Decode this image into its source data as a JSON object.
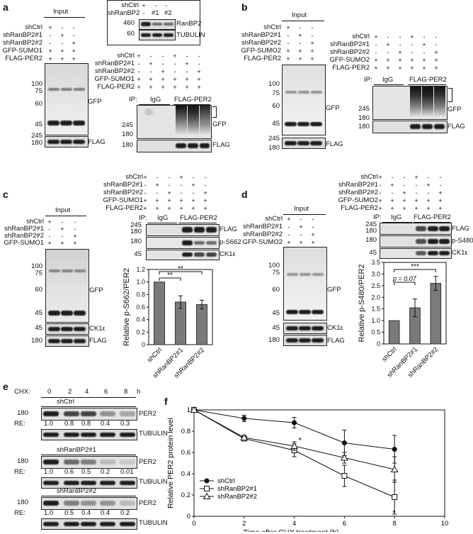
{
  "panels": {
    "a": "a",
    "b": "b",
    "c": "c",
    "d": "d",
    "e": "e",
    "f": "f"
  },
  "common": {
    "input": "Input",
    "ip": "IP:",
    "igg": "IgG",
    "flag_per2": "FLAG-PER2",
    "gfp": "GFP",
    "flag": "FLAG",
    "tubulin": "TUBULIN",
    "ranbp2": "RanBP2",
    "ck1e": "CK1ε",
    "ps662": "p-S662",
    "ps480": "p-S480",
    "per2": "PER2"
  },
  "row_labels": {
    "shctrl": "shCtrl",
    "sh1": "shRanBP2#1",
    "sh2": "shRanBP2#2",
    "gfp_sumo1": "GFP-SUMO1",
    "gfp_sumo2": "GFP-SUMO2",
    "flag_per2": "FLAG-PER2"
  },
  "mw": {
    "m460": "460",
    "m245": "245",
    "m180": "180",
    "m100": "100",
    "m75": "75",
    "m60": "60",
    "m45": "45"
  },
  "inset": {
    "label": "shRanBP2",
    "shctrl": "shCtrl",
    "l1": "#1",
    "l2": "#2",
    "plus": "+",
    "minus": "-"
  },
  "signs": {
    "plus": "+",
    "minus": "-"
  },
  "chart_c": {
    "ylabel": "Relative p-S662/PER2",
    "categories": [
      "shCtrl",
      "shRanBP2#1",
      "shRanBP2#2"
    ],
    "values": [
      1.0,
      0.68,
      0.64
    ],
    "errors": [
      0.0,
      0.1,
      0.07
    ],
    "ticks": [
      "0",
      "0.2",
      "0.4",
      "0.6",
      "0.8",
      "1.0",
      "1.2"
    ],
    "sig": [
      "**",
      "**"
    ]
  },
  "chart_d": {
    "ylabel": "Relative p-S480/PER2",
    "categories": [
      "shCtrl",
      "shRanBP2#1",
      "shRanBP2#2"
    ],
    "values": [
      1.0,
      1.55,
      2.6
    ],
    "errors": [
      0.0,
      0.38,
      0.3
    ],
    "ticks": [
      "0",
      "0.5",
      "1.0",
      "1.5",
      "2.0",
      "2.5",
      "3.0",
      "3.5"
    ],
    "sig_p": "p = 0.07",
    "sig": "***"
  },
  "panel_e": {
    "chx": "CHX:",
    "hours": [
      "0",
      "2",
      "4",
      "6",
      "8"
    ],
    "h": "h",
    "re": "RE:",
    "groups": [
      {
        "name": "shCtrl",
        "re": [
          "1.0",
          "0.8",
          "0.8",
          "0.4",
          "0.3"
        ]
      },
      {
        "name": "shRanBP2#1",
        "re": [
          "1.0",
          "0.6",
          "0.5",
          "0.2",
          "0.01"
        ]
      },
      {
        "name": "shRanBP2#2",
        "re": [
          "1.0",
          "0.5",
          "0.4",
          "0.4",
          "0.2"
        ]
      }
    ]
  },
  "chart_data": {
    "type": "line",
    "x": [
      0,
      2,
      4,
      6,
      8
    ],
    "xlabel": "Time after CHX treatment (h)",
    "ylabel": "Relative PER2 protein level",
    "xlim": [
      0,
      10
    ],
    "ylim": [
      0,
      1
    ],
    "xticks": [
      "0",
      "2",
      "4",
      "6",
      "8",
      "10"
    ],
    "yticks": [
      "0",
      "0.2",
      "0.4",
      "0.6",
      "0.8",
      "1"
    ],
    "series": [
      {
        "name": "shCtrl",
        "values": [
          1.0,
          0.92,
          0.88,
          0.69,
          0.63
        ],
        "errors": [
          0,
          0.03,
          0.05,
          0.12,
          0.13
        ],
        "marker": "filled-circle"
      },
      {
        "name": "shRanBP2#1",
        "values": [
          1.0,
          0.73,
          0.62,
          0.38,
          0.18
        ],
        "errors": [
          0,
          0.02,
          0.06,
          0.1,
          0.16
        ],
        "marker": "open-square"
      },
      {
        "name": "shRanBP2#2",
        "values": [
          1.0,
          0.74,
          0.66,
          0.55,
          0.44
        ],
        "errors": [
          0,
          0.02,
          0.04,
          0.05,
          0.12
        ],
        "marker": "open-triangle"
      }
    ],
    "annotations": [
      "*",
      "*"
    ]
  }
}
